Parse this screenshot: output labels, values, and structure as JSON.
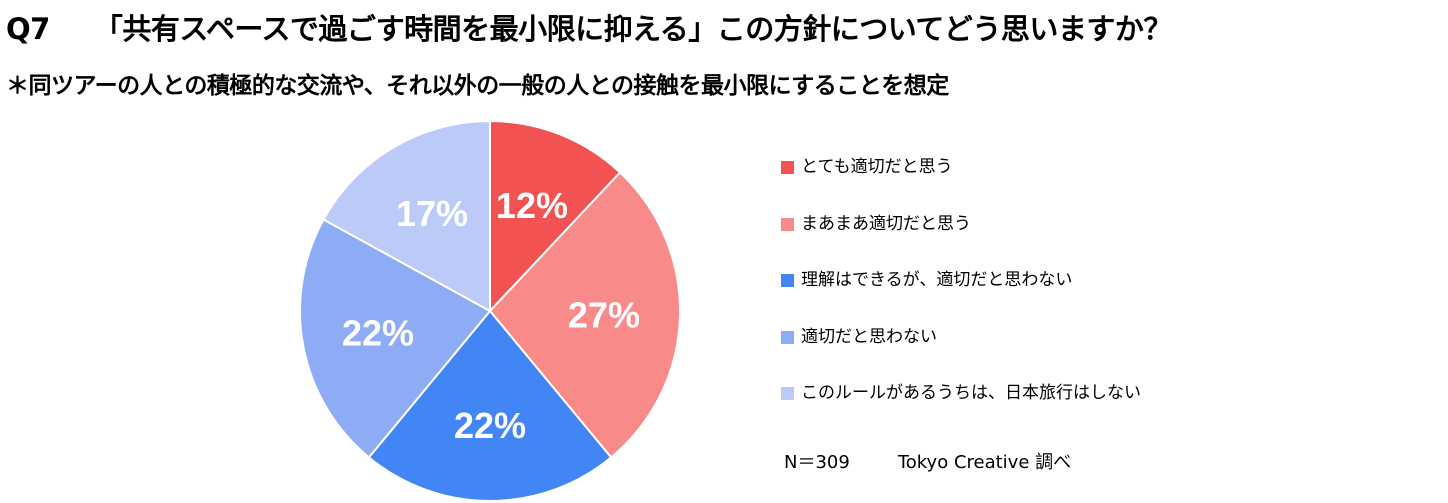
{
  "chart_data": {
    "type": "pie",
    "title": "Q7　「共有スペースで過ごす時間を最小限に抑える」この方針についてどう思いますか？",
    "title_number": "Q7",
    "title_text": "「共有スペースで過ごす時間を最小限に抑える」この方針についてどう思いますか？",
    "subtitle": "＊同ツアーの人との積極的な交流や、それ以外の一般の人との接触を最小限にすることを想定",
    "legend_placement": "right",
    "slices": [
      {
        "label": "とても適切だと思う",
        "value": 12,
        "display": "12%",
        "color": "#f25252"
      },
      {
        "label": "まあまあ適切だと思う",
        "value": 27,
        "display": "27%",
        "color": "#f88a8a"
      },
      {
        "label": "理解はできるが、適切だと思わない",
        "value": 22,
        "display": "22%",
        "color": "#4285f4"
      },
      {
        "label": "適切だと思わない",
        "value": 22,
        "display": "22%",
        "color": "#8eabf5"
      },
      {
        "label": "このルールがあるうちは、日本旅行はしない",
        "value": 17,
        "display": "17%",
        "color": "#bccaf8"
      }
    ]
  },
  "footer": {
    "sample_size": "N＝309",
    "source": "Tokyo Creative  調べ"
  }
}
